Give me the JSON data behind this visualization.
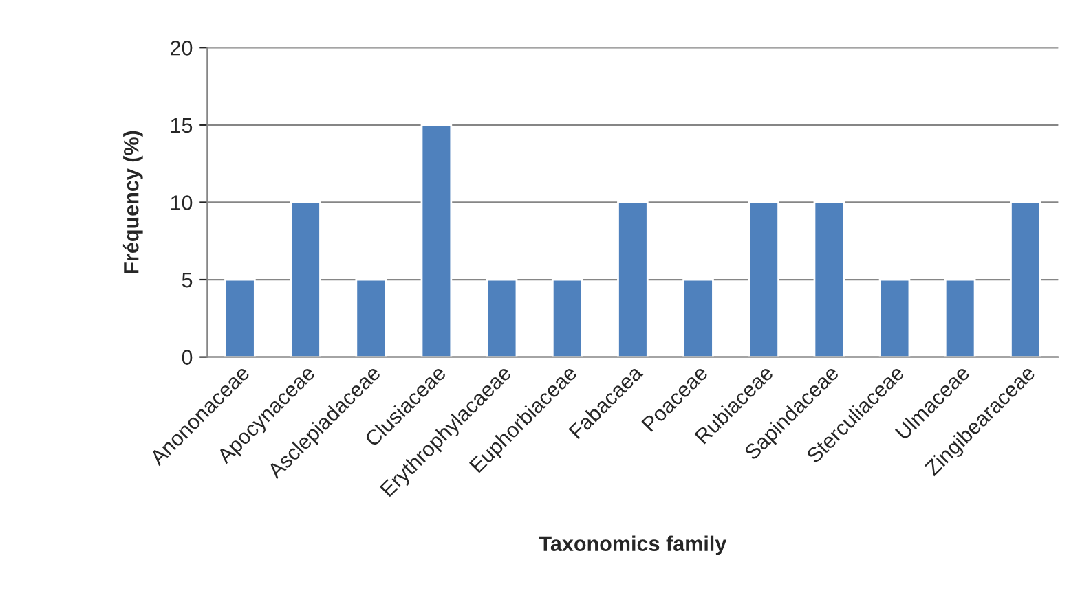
{
  "chart_data": {
    "type": "bar",
    "xlabel": "Taxonomics family",
    "ylabel": "Fréquency (%)",
    "categories": [
      "Anononaceae",
      "Apocynaceae",
      "Asclepiadaceae",
      "Clusiaceae",
      "Erythrophylacaeae",
      "Euphorbiaceae",
      "Fabacaea",
      "Poaceae",
      "Rubiaceae",
      "Sapindaceae",
      "Sterculiaceae",
      "Ulmaceae",
      "Zingibearaceae"
    ],
    "values": [
      5,
      10,
      5,
      15,
      5,
      5,
      10,
      5,
      10,
      10,
      5,
      5,
      10
    ],
    "color": "#4f81bd",
    "ylim": [
      0,
      20
    ],
    "yticks": [
      0,
      5,
      10,
      15,
      20
    ],
    "grid": "y",
    "legend": false
  }
}
